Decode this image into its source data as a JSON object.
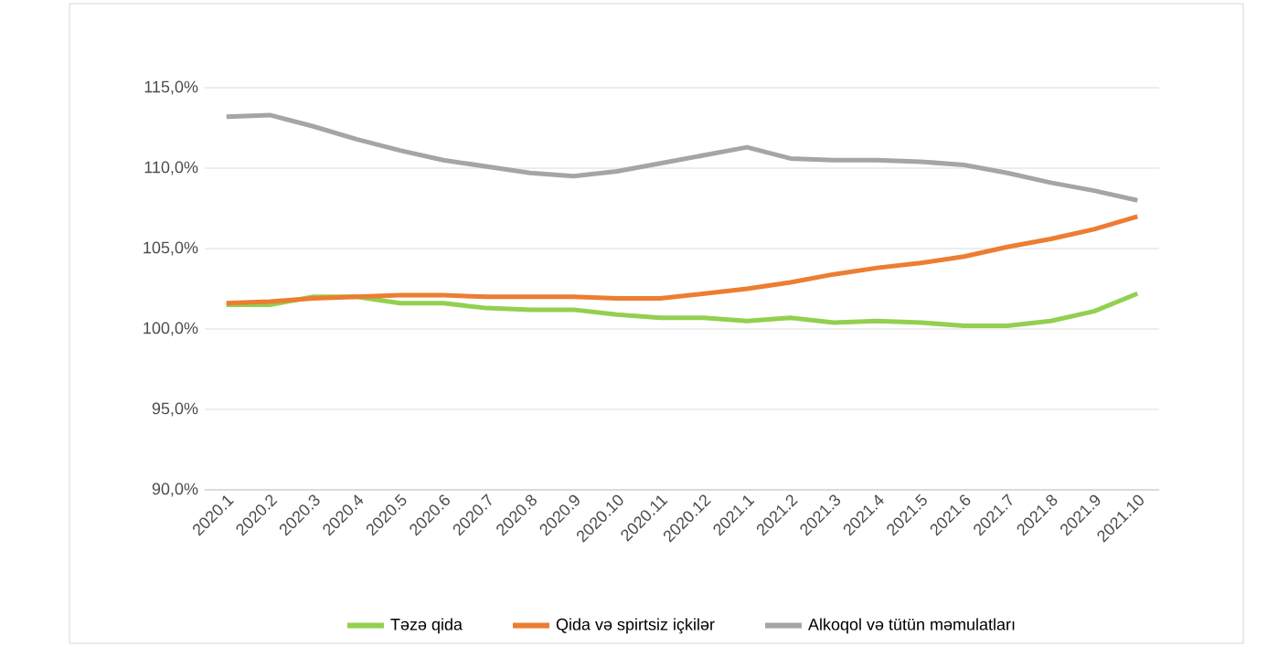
{
  "chart_data": {
    "type": "line",
    "categories": [
      "2020.1",
      "2020.2",
      "2020.3",
      "2020.4",
      "2020.5",
      "2020.6",
      "2020.7",
      "2020.8",
      "2020.9",
      "2020.10",
      "2020.11",
      "2020.12",
      "2021.1",
      "2021.2",
      "2021.3",
      "2021.4",
      "2021.5",
      "2021.6",
      "2021.7",
      "2021.8",
      "2021.9",
      "2021.10"
    ],
    "series": [
      {
        "name": "Təzə qida",
        "color": "#92d050",
        "values": [
          101.5,
          101.5,
          102.0,
          102.0,
          101.6,
          101.6,
          101.3,
          101.2,
          101.2,
          100.9,
          100.7,
          100.7,
          100.5,
          100.7,
          100.4,
          100.5,
          100.4,
          100.2,
          100.2,
          100.5,
          101.1,
          102.2
        ]
      },
      {
        "name": "Qida və spirtsiz içkilər",
        "color": "#ed7d31",
        "values": [
          101.6,
          101.7,
          101.9,
          102.0,
          102.1,
          102.1,
          102.0,
          102.0,
          102.0,
          101.9,
          101.9,
          102.2,
          102.5,
          102.9,
          103.4,
          103.8,
          104.1,
          104.5,
          105.1,
          105.6,
          106.2,
          107.0
        ]
      },
      {
        "name": "Alkoqol və tütün məmulatları",
        "color": "#a5a5a5",
        "values": [
          113.2,
          113.3,
          112.6,
          111.8,
          111.1,
          110.5,
          110.1,
          109.7,
          109.5,
          109.8,
          110.3,
          110.8,
          111.3,
          110.6,
          110.5,
          110.5,
          110.4,
          110.2,
          109.7,
          109.1,
          108.6,
          108.0
        ]
      }
    ],
    "ylim": [
      90,
      115
    ],
    "yticks": [
      {
        "value": 90,
        "label": "90,0%"
      },
      {
        "value": 95,
        "label": "95,0%"
      },
      {
        "value": 100,
        "label": "100,0%"
      },
      {
        "value": 105,
        "label": "105,0%"
      },
      {
        "value": 110,
        "label": "110,0%"
      },
      {
        "value": 115,
        "label": "115,0%"
      }
    ],
    "grid": "y",
    "legend": "bottom",
    "marker": "none",
    "line_style": "solid"
  }
}
